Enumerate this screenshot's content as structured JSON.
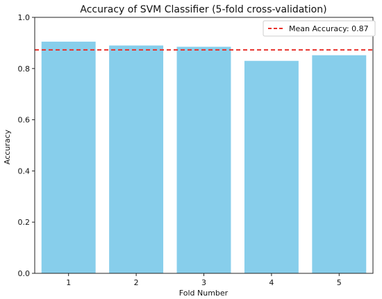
{
  "chart_data": {
    "type": "bar",
    "title": "Accuracy of SVM Classifier (5-fold cross-validation)",
    "xlabel": "Fold Number",
    "ylabel": "Accuracy",
    "categories": [
      "1",
      "2",
      "3",
      "4",
      "5"
    ],
    "values": [
      0.905,
      0.89,
      0.885,
      0.83,
      0.852
    ],
    "ylim": [
      0,
      1.0
    ],
    "yticks": [
      "0.0",
      "0.2",
      "0.4",
      "0.6",
      "0.8",
      "1.0"
    ],
    "mean_line": {
      "value": 0.873,
      "label": "Mean Accuracy: 0.87"
    },
    "legend_position": "top-right",
    "grid": false,
    "colors": {
      "bar": "#87ceeb",
      "mean_line": "#e8302a",
      "axis": "#222222"
    }
  }
}
